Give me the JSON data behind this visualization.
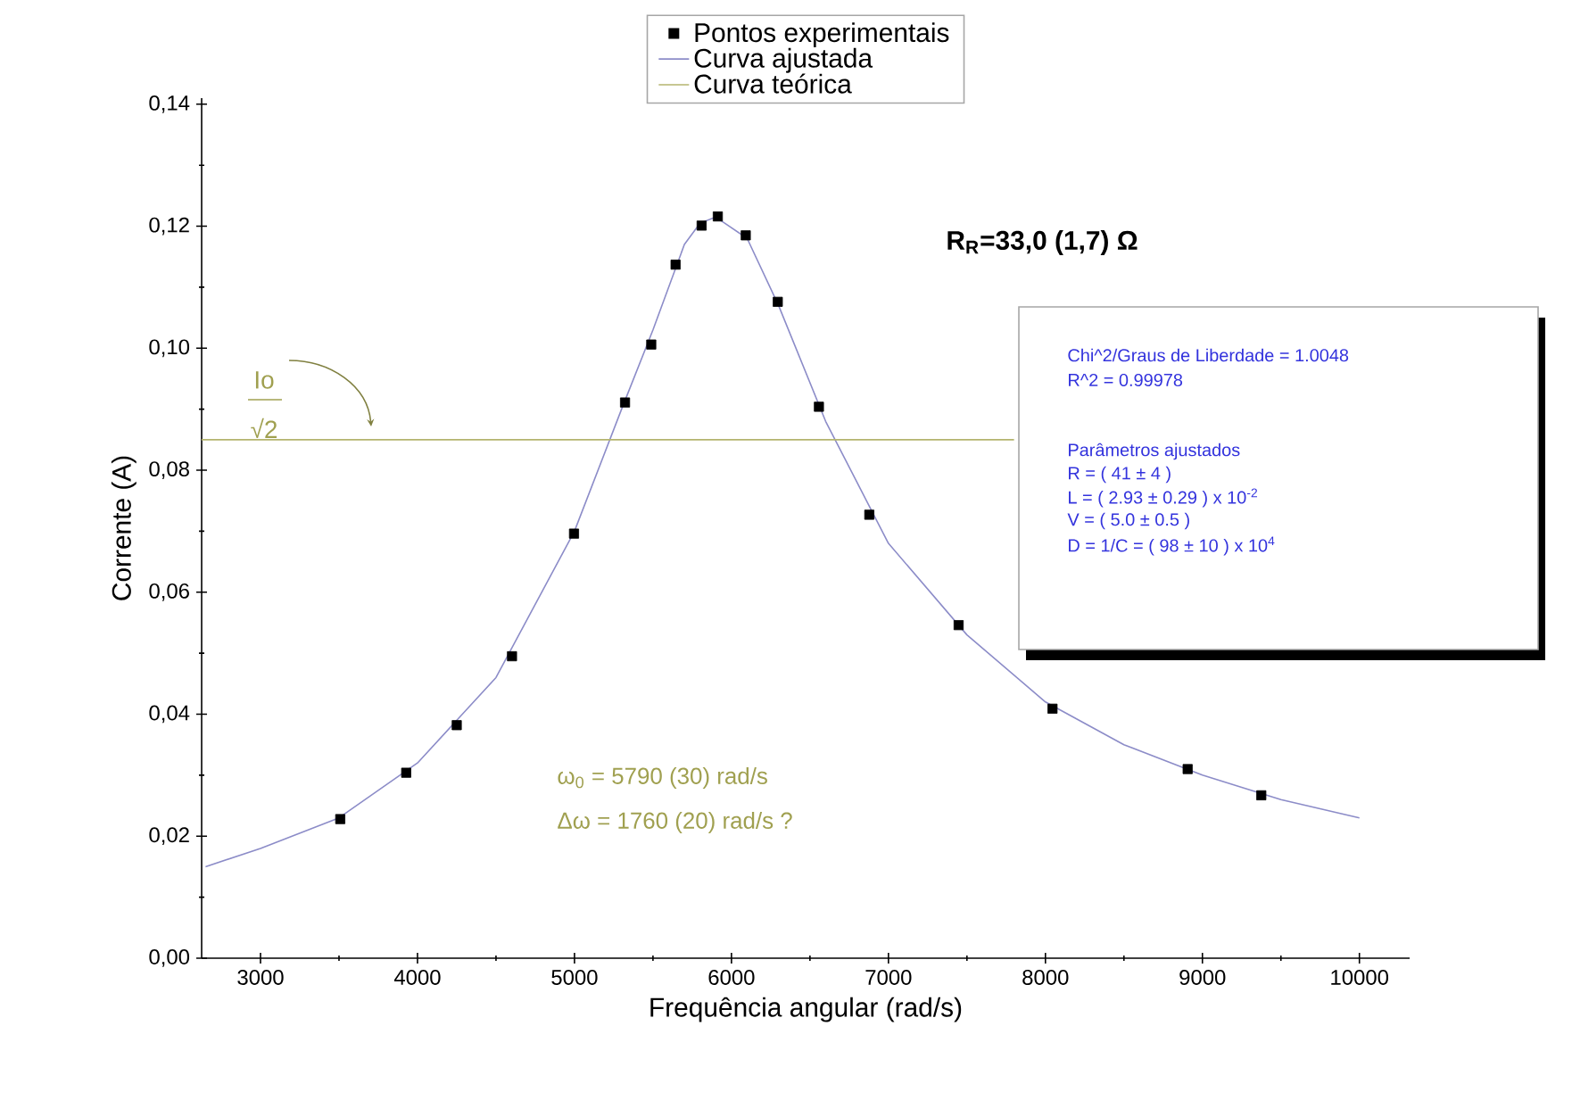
{
  "chart_data": {
    "type": "scatter",
    "xlabel": "Frequência angular (rad/s)",
    "ylabel": "Corrente (A)",
    "xlim": [
      2625,
      10320
    ],
    "ylim": [
      0,
      0.141
    ],
    "xticks": [
      3000,
      4000,
      5000,
      6000,
      7000,
      8000,
      9000,
      10000
    ],
    "yticks": [
      {
        "value": 0,
        "label": "0,00"
      },
      {
        "value": 0.02,
        "label": "0,02"
      },
      {
        "value": 0.04,
        "label": "0,04"
      },
      {
        "value": 0.06,
        "label": "0,06"
      },
      {
        "value": 0.08,
        "label": "0,08"
      },
      {
        "value": 0.1,
        "label": "0,10"
      },
      {
        "value": 0.12,
        "label": "0,12"
      },
      {
        "value": 0.14,
        "label": "0,14"
      }
    ],
    "legend": "top",
    "series": [
      {
        "name": "Pontos experimentais",
        "marker": "square",
        "color": "#000000",
        "x": [
          3508,
          3928,
          4250,
          4602,
          4997,
          5322,
          5489,
          5644,
          5810,
          5913,
          6091,
          6295,
          6557,
          6878,
          7447,
          8045,
          8906,
          9375
        ],
        "values": [
          0.0228,
          0.0304,
          0.0382,
          0.0495,
          0.0696,
          0.0911,
          0.1006,
          0.1137,
          0.1201,
          0.1216,
          0.1185,
          0.1076,
          0.0904,
          0.0727,
          0.0546,
          0.0409,
          0.031,
          0.0267
        ]
      },
      {
        "name": "Curva ajustada",
        "type": "line",
        "color": "#8c8cc8",
        "x": [
          2650,
          3000,
          3500,
          4000,
          4500,
          5000,
          5300,
          5500,
          5700,
          5800,
          5900,
          6100,
          6300,
          6600,
          7000,
          7500,
          8000,
          8500,
          9000,
          9500,
          10000
        ],
        "values": [
          0.015,
          0.018,
          0.023,
          0.032,
          0.046,
          0.07,
          0.09,
          0.103,
          0.117,
          0.1205,
          0.1215,
          0.118,
          0.107,
          0.088,
          0.068,
          0.053,
          0.042,
          0.035,
          0.03,
          0.026,
          0.023
        ]
      },
      {
        "name": "Curva teórica",
        "type": "line",
        "color": "#b4b46e",
        "x": [
          2625,
          7800
        ],
        "values": [
          0.085,
          0.085
        ]
      }
    ],
    "annotations": [
      "Io",
      "√2",
      "R$_{R}$=33,0 (1,7) Ω",
      "Chi^2/Graus de Liberdade = 1.0048",
      "R^2 = 0.99978",
      "Parâmetros ajustados",
      "R = ( 41 ± 4 )",
      "L = ( 2.93 ± 0.29 ) x 10$^{-2}$",
      "V = ( 5.0 ± 0.5 )",
      "D = 1/C = ( 98 ± 10 ) x 10$^{4}$",
      "ω$_{0}$ = 5790 (30) rad/s",
      "Δω = 1760 (20) rad/s ?"
    ]
  }
}
